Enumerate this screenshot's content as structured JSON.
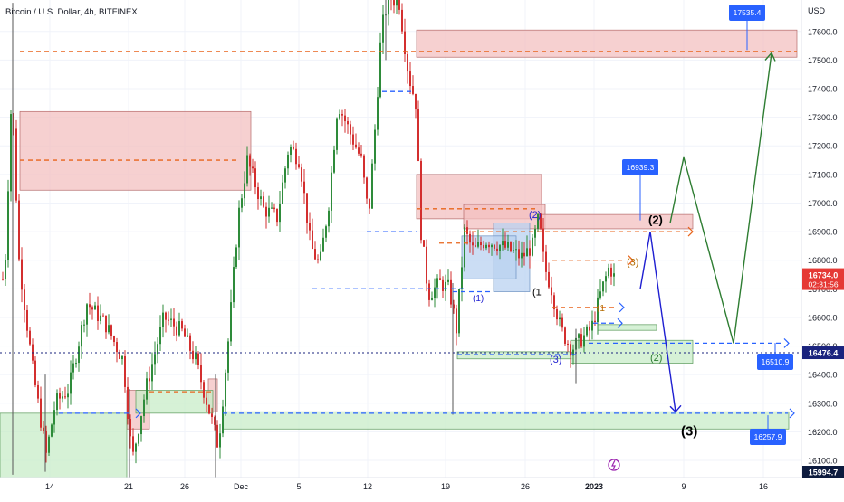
{
  "header": {
    "symbol_title": "Bitcoin / U.S. Dollar, 4h, BITFINEX",
    "currency": "USD"
  },
  "colors": {
    "up": "#2e8b3a",
    "down": "#d32f2f",
    "supply_zone": "#f3c0c0",
    "demand_zone": "#c8ecc8",
    "blue_zone": "#b9d2f0",
    "orange_line": "#e8641b",
    "blue_line": "#2962ff",
    "impulse_path": "#1f1fd1",
    "alt_path": "#2e7d32",
    "price_tag": "#e53935",
    "dotted_line": "#1a237e",
    "low_tag": "#0d1b3e"
  },
  "chart_data": {
    "type": "candlestick",
    "title": "Bitcoin / U.S. Dollar, 4h, BITFINEX",
    "ylabel": "USD",
    "ylim": [
      16040,
      17710
    ],
    "x_ticks": [
      "14",
      "21",
      "26",
      "Dec",
      "5",
      "12",
      "19",
      "26",
      "2023",
      "9",
      "16"
    ],
    "y_ticks": [
      16100,
      16200,
      16300,
      16400,
      16500,
      16600,
      16700,
      16800,
      16900,
      17000,
      17100,
      17200,
      17300,
      17400,
      17500,
      17600
    ],
    "last_price": "16734.0",
    "countdown": "02:31:56",
    "price_tags": [
      {
        "value": 16476.4,
        "label": "16476.4"
      },
      {
        "value": 15994.7,
        "label": "15994.7"
      }
    ],
    "callouts": [
      {
        "label": "17535.4",
        "value": 17535.4
      },
      {
        "label": "16939.3",
        "value": 16939.3
      },
      {
        "label": "16510.9",
        "value": 16510.9
      },
      {
        "label": "16257.9",
        "value": 16257.9
      }
    ],
    "wave_labels": [
      {
        "label": "(2)",
        "value": 16940
      },
      {
        "label": "(3)",
        "value": 16200
      },
      {
        "label": "(2)",
        "value": 16460
      },
      {
        "label": "(1",
        "value": 16690
      },
      {
        "label": "(1)",
        "value": 16670
      },
      {
        "label": "(2)",
        "value": 16960
      },
      {
        "label": "(3)",
        "value": 16455
      },
      {
        "label": "(1",
        "value": 16635
      },
      {
        "label": "(3)",
        "value": 16795
      }
    ],
    "projection_primary": [
      16700,
      16900,
      16270
    ],
    "projection_alternate": [
      16930,
      17160,
      16510,
      17525
    ]
  }
}
